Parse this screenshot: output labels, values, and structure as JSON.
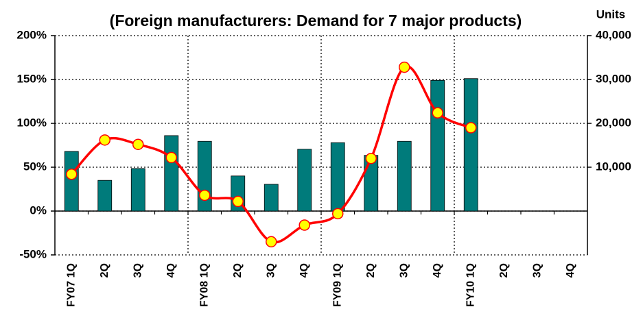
{
  "chart_data": {
    "type": "bar-line",
    "title": "(Foreign manufacturers: Demand for 7 major products)",
    "y2_label": "Units",
    "categories": [
      "FY07 1Q",
      "2Q",
      "3Q",
      "4Q",
      "FY08 1Q",
      "2Q",
      "3Q",
      "4Q",
      "FY09 1Q",
      "2Q",
      "3Q",
      "4Q",
      "FY10 1Q",
      "2Q",
      "3Q",
      "4Q"
    ],
    "series": [
      {
        "type": "bar",
        "axis": "y2",
        "color": "#007b7b",
        "values": [
          13600,
          7000,
          9700,
          17200,
          15900,
          8000,
          6100,
          14100,
          15600,
          12700,
          15900,
          29800,
          30200,
          null,
          null,
          null
        ]
      },
      {
        "type": "line",
        "axis": "y",
        "color": "#ff0000",
        "marker_color": "#ffff00",
        "values": [
          42,
          81,
          76,
          61,
          18,
          11,
          -35,
          -16,
          -3,
          60,
          164,
          112,
          95,
          null,
          null,
          null
        ]
      }
    ],
    "ylim": [
      -50,
      200
    ],
    "yticks": [
      {
        "value": -50,
        "label": "-50%"
      },
      {
        "value": 0,
        "label": "0%"
      },
      {
        "value": 50,
        "label": "50%"
      },
      {
        "value": 100,
        "label": "100%"
      },
      {
        "value": 150,
        "label": "150%"
      },
      {
        "value": 200,
        "label": "200%"
      }
    ],
    "y2lim": [
      -10000,
      40000
    ],
    "y2ticks": [
      {
        "value": 10000,
        "label": "10,000"
      },
      {
        "value": 20000,
        "label": "20,000"
      },
      {
        "value": 30000,
        "label": "30,000"
      },
      {
        "value": 40000,
        "label": "40,000"
      }
    ],
    "grid": true
  }
}
